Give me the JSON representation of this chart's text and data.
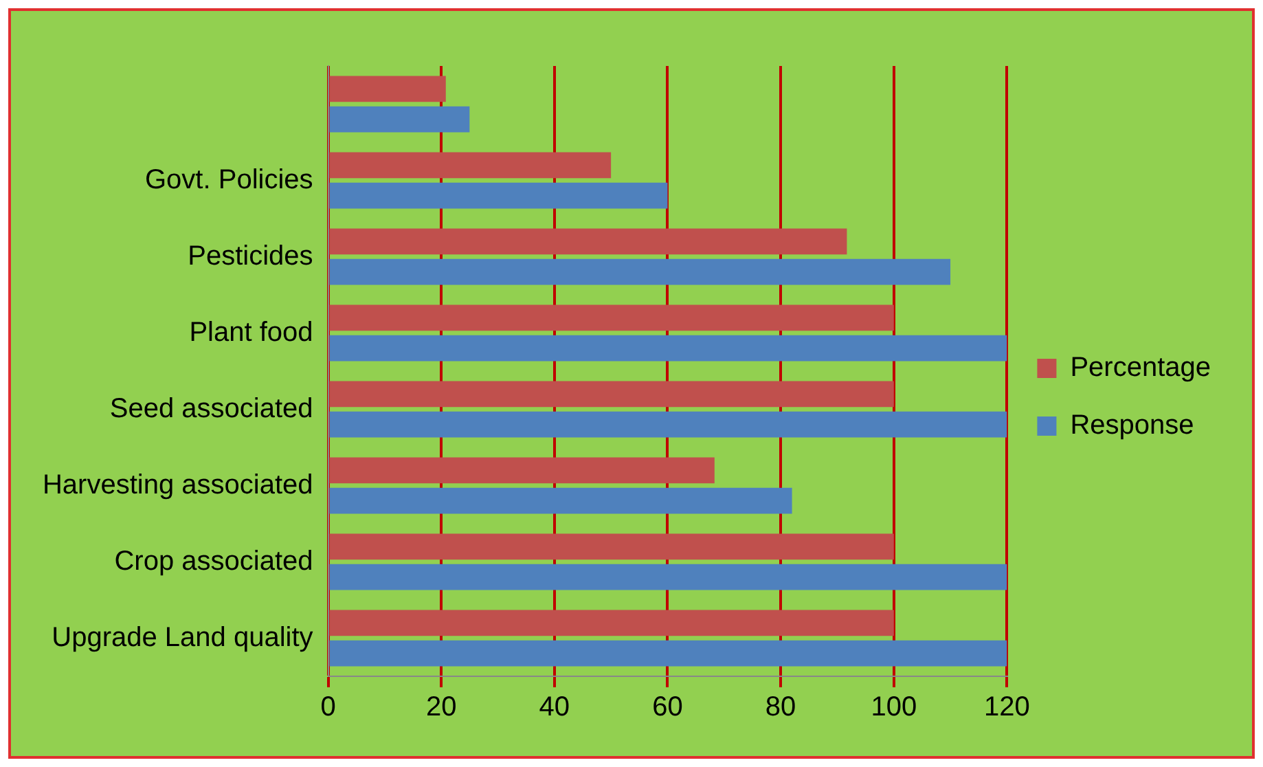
{
  "chart_data": {
    "type": "bar",
    "orientation": "horizontal",
    "categories": [
      null,
      "Govt. Policies",
      "Pesticides",
      "Plant food",
      "Seed associated",
      "Harvesting associated",
      "Crop associated",
      "Upgrade Land quality"
    ],
    "series": [
      {
        "name": "Percentage",
        "color": "#c0504d",
        "values": [
          20.8,
          50,
          91.7,
          100,
          100,
          68.3,
          100,
          100
        ]
      },
      {
        "name": "Response",
        "color": "#4f81bd",
        "values": [
          25,
          60,
          110,
          120,
          120,
          82,
          120,
          120
        ]
      }
    ],
    "xlim": [
      0,
      120
    ],
    "xticks": [
      0,
      20,
      40,
      60,
      80,
      100,
      120
    ],
    "grid": "x",
    "legend": "right"
  }
}
